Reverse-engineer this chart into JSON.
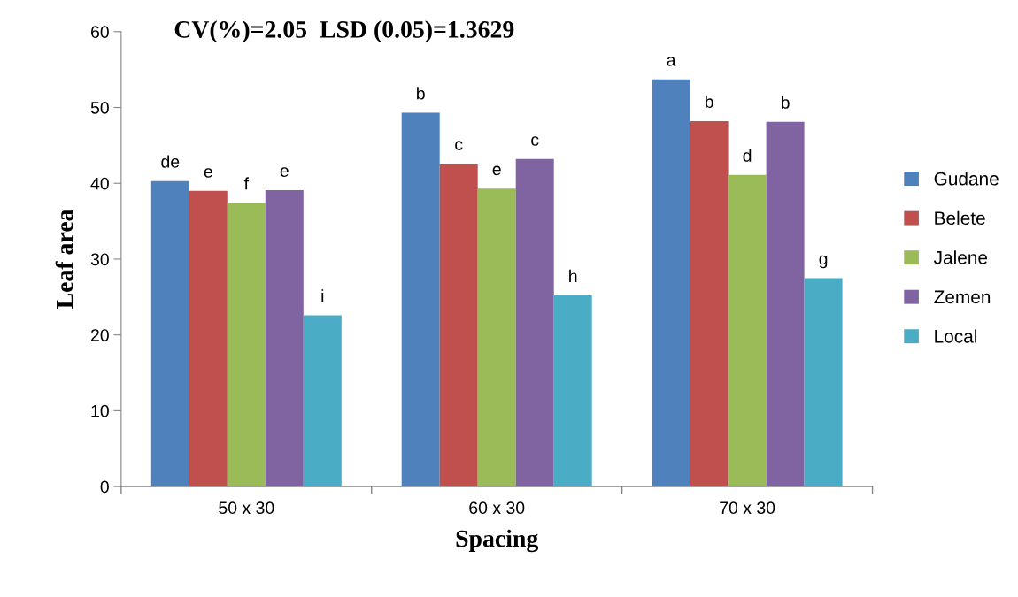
{
  "chart_data": {
    "type": "bar",
    "title": "CV(%)=2.05  LSD (0.05)=1.3629",
    "xlabel": "Spacing",
    "ylabel": "Leaf area",
    "categories": [
      "50 x 30",
      "60 x 30",
      "70 x 30"
    ],
    "series": [
      {
        "name": "Gudane",
        "color": "#4f81bd",
        "values": [
          40.3,
          49.3,
          53.7
        ],
        "value_labels": [
          "de",
          "b",
          "a"
        ]
      },
      {
        "name": "Belete",
        "color": "#c0504d",
        "values": [
          39.0,
          42.6,
          48.2
        ],
        "value_labels": [
          "e",
          "c",
          "b"
        ]
      },
      {
        "name": "Jalene",
        "color": "#9bbb59",
        "values": [
          37.4,
          39.3,
          41.1
        ],
        "value_labels": [
          "f",
          "e",
          "d"
        ]
      },
      {
        "name": "Zemen",
        "color": "#8064a2",
        "values": [
          39.1,
          43.2,
          48.1
        ],
        "value_labels": [
          "e",
          "c",
          "b"
        ]
      },
      {
        "name": "Local",
        "color": "#4bacc6",
        "values": [
          22.6,
          25.2,
          27.5
        ],
        "value_labels": [
          "i",
          "h",
          "g"
        ]
      }
    ],
    "ylim": [
      0,
      60
    ],
    "yticks": [
      0,
      10,
      20,
      30,
      40,
      50,
      60
    ],
    "grid": false,
    "legend": "right"
  }
}
